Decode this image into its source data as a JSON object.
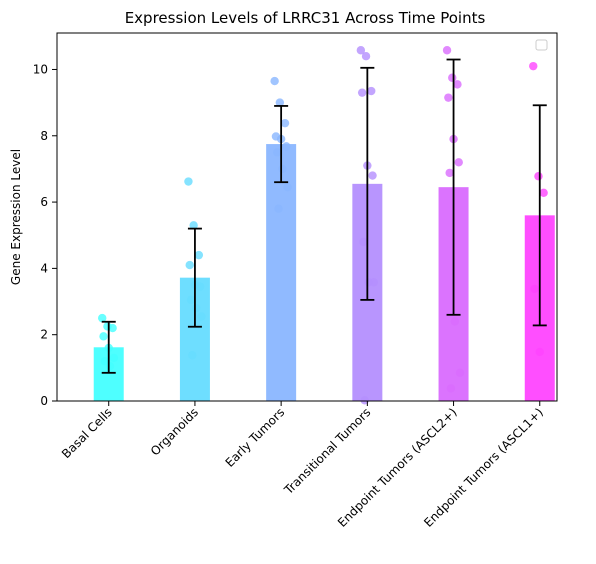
{
  "chart_data": {
    "type": "bar",
    "title": "Expression Levels of LRRC31 Across Time Points",
    "xlabel": "",
    "ylabel": "Gene Expression Level",
    "ylim": [
      0,
      11.1
    ],
    "yticks": [
      0,
      2,
      4,
      6,
      8,
      10
    ],
    "grid": false,
    "legend": "top-right (empty)",
    "categories": [
      "Basal Cells",
      "Organoids",
      "Early Tumors",
      "Transitional Tumors",
      "Endpoint Tumors (ASCL2+)",
      "Endpoint Tumors (ASCL1+)"
    ],
    "values": [
      1.62,
      3.72,
      7.75,
      6.55,
      6.45,
      5.6
    ],
    "errors": [
      0.77,
      1.48,
      1.15,
      3.5,
      3.85,
      3.32
    ],
    "bar_colors": [
      "#44ffff",
      "#66dcff",
      "#8ab6ff",
      "#b48ffe",
      "#d96bfe",
      "#ff44ff"
    ],
    "points": [
      [
        2.5,
        2.25,
        2.2,
        1.95,
        1.6,
        1.3,
        1.2,
        1.05
      ],
      [
        6.62,
        5.3,
        4.4,
        4.1,
        3.5,
        3.45,
        3.05,
        2.8,
        2.55,
        1.38
      ],
      [
        9.65,
        9.0,
        8.38,
        7.98,
        7.9,
        7.68,
        7.5,
        7.0,
        6.45,
        5.8
      ],
      [
        10.58,
        10.4,
        9.35,
        9.3,
        7.1,
        6.8,
        4.8,
        3.58,
        3.58,
        0.02
      ],
      [
        10.58,
        9.75,
        9.55,
        9.15,
        7.9,
        7.2,
        6.88,
        2.4,
        0.85,
        0.38
      ],
      [
        10.1,
        6.78,
        6.28,
        3.38,
        1.48
      ]
    ]
  }
}
